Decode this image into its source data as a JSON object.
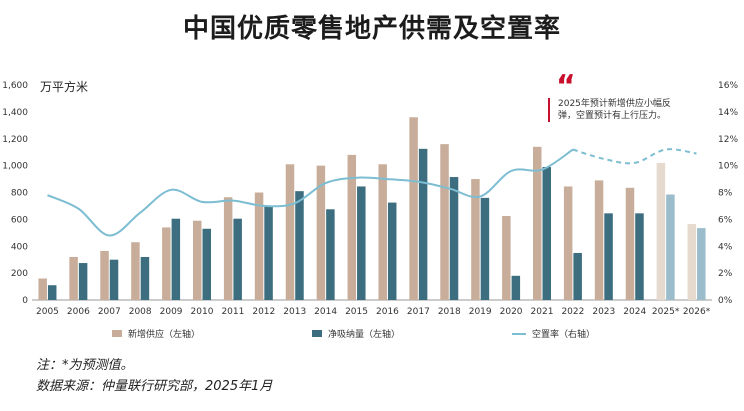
{
  "title": "中国优质零售地产供需及空置率",
  "unit_label": "万平方米",
  "callout": {
    "mark": "“",
    "text": "2025年预计新增供应小幅反弹，空置预计有上行压力。"
  },
  "notes": {
    "note": "注：*为预测值。",
    "source": "数据来源：仲量联行研究部，2025年1月"
  },
  "legend": {
    "supply": "新增供应（左轴）",
    "absorption": "净吸纳量（左轴）",
    "vacancy": "空置率（右轴）"
  },
  "colors": {
    "supply": "#c8ae9a",
    "absorption": "#3c6e80",
    "vacancy": "#7cbdd2",
    "supply_forecast": "#e6d9ce",
    "absorption_forecast": "#9bbdcb",
    "accent": "#c8102e"
  },
  "chart_data": {
    "type": "bar",
    "categories": [
      "2005",
      "2006",
      "2007",
      "2008",
      "2009",
      "2010",
      "2011",
      "2012",
      "2013",
      "2014",
      "2015",
      "2016",
      "2017",
      "2018",
      "2019",
      "2020",
      "2021",
      "2022",
      "2023",
      "2024",
      "2025*",
      "2026*"
    ],
    "forecast_categories": [
      "2025*",
      "2026*"
    ],
    "series": [
      {
        "name": "新增供应（左轴）",
        "axis": "left",
        "type": "bar",
        "values": [
          160,
          320,
          365,
          430,
          540,
          590,
          765,
          800,
          1010,
          1000,
          1080,
          1010,
          1360,
          1160,
          900,
          625,
          1140,
          845,
          890,
          835,
          1020,
          565
        ]
      },
      {
        "name": "净吸纳量（左轴）",
        "axis": "left",
        "type": "bar",
        "values": [
          110,
          275,
          300,
          320,
          605,
          530,
          605,
          700,
          810,
          675,
          845,
          725,
          1125,
          915,
          760,
          180,
          990,
          350,
          645,
          645,
          785,
          535
        ]
      },
      {
        "name": "空置率（右轴）",
        "axis": "right",
        "type": "line",
        "unit": "%",
        "values": [
          7.8,
          6.8,
          4.8,
          6.5,
          8.2,
          7.3,
          7.4,
          7.0,
          7.2,
          8.7,
          9.1,
          9.0,
          8.8,
          8.3,
          7.7,
          9.6,
          9.7,
          11.2,
          10.5,
          10.2,
          11.2,
          10.9
        ]
      }
    ],
    "left_axis": {
      "ylim": [
        0,
        1600
      ],
      "ticks": [
        "0",
        "200",
        "400",
        "600",
        "800",
        "1,000",
        "1,200",
        "1,400",
        "1,600"
      ]
    },
    "right_axis": {
      "ylim": [
        0,
        16
      ],
      "ticks": [
        "0%",
        "2%",
        "4%",
        "6%",
        "8%",
        "10%",
        "12%",
        "14%",
        "16%"
      ]
    },
    "grid": false,
    "legend_position": "bottom"
  }
}
